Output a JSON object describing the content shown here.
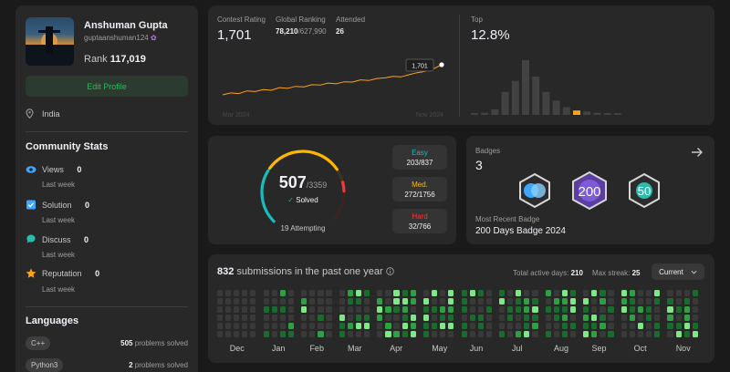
{
  "profile": {
    "name": "Anshuman Gupta",
    "handle": "guptaanshuman124",
    "rank_label": "Rank",
    "rank_value": "117,019",
    "edit_label": "Edit Profile",
    "location": "India"
  },
  "community": {
    "title": "Community Stats",
    "items": [
      {
        "label": "Views",
        "value": "0",
        "sub": "Last week",
        "color": "#3ea6ff",
        "icon": "eye-icon"
      },
      {
        "label": "Solution",
        "value": "0",
        "sub": "Last week",
        "color": "#3ea6ff",
        "icon": "checkbox-icon"
      },
      {
        "label": "Discuss",
        "value": "0",
        "sub": "Last week",
        "color": "#2cbbaa",
        "icon": "chat-icon"
      },
      {
        "label": "Reputation",
        "value": "0",
        "sub": "Last week",
        "color": "#ffa116",
        "icon": "star-icon"
      }
    ]
  },
  "languages": {
    "title": "Languages",
    "items": [
      {
        "name": "C++",
        "count": "505",
        "suffix": "problems solved"
      },
      {
        "name": "Python3",
        "count": "2",
        "suffix": "problems solved"
      }
    ]
  },
  "contest": {
    "rating_label": "Contest Rating",
    "rating": "1,701",
    "global_label": "Global Ranking",
    "global_rank": "78,210",
    "global_total": "/627,990",
    "attended_label": "Attended",
    "attended": "26",
    "tooltip": "1,701",
    "x_start": "Mar 2024",
    "x_end": "Nov 2024",
    "top_label": "Top",
    "top_value": "12.8%",
    "line_color": "#ffa116"
  },
  "chart_data": [
    {
      "type": "line",
      "title": "",
      "series": [
        {
          "values": [
            1470,
            1485,
            1480,
            1500,
            1495,
            1510,
            1505,
            1525,
            1520,
            1535,
            1530,
            1548,
            1545,
            1560,
            1555,
            1570,
            1568,
            1585,
            1580,
            1595,
            1600,
            1612,
            1608,
            1625,
            1640,
            1650,
            1670,
            1701
          ]
        }
      ],
      "ylim": [
        1400,
        1750
      ],
      "xlabel": "",
      "ylabel": ""
    },
    {
      "type": "bar",
      "title": "",
      "values": [
        2,
        4,
        10,
        42,
        62,
        100,
        70,
        42,
        26,
        14,
        8,
        6,
        4,
        3,
        2
      ],
      "highlight_index": 10,
      "ylim": [
        0,
        100
      ],
      "xlabel": "",
      "ylabel": ""
    }
  ],
  "solved": {
    "count": "507",
    "total": "/3359",
    "solved_label": "Solved",
    "attempting": "19 Attempting",
    "easy": {
      "label": "Easy",
      "value": "203/837",
      "color": "#1cbaba"
    },
    "medium": {
      "label": "Med.",
      "value": "272/1756",
      "color": "#ffb700"
    },
    "hard": {
      "label": "Hard",
      "value": "32/766",
      "color": "#f63737"
    },
    "arc": {
      "easy": 0.3,
      "medium": 0.42,
      "hard": 0.05
    }
  },
  "badges": {
    "title": "Badges",
    "count": "3",
    "recent_label": "Most Recent Badge",
    "recent_name": "200 Days Badge 2024",
    "items": [
      {
        "text": ""
      },
      {
        "text": "200"
      },
      {
        "text": "50"
      }
    ]
  },
  "submissions": {
    "count": "832",
    "label": "submissions in the past one year",
    "active_label": "Total active days:",
    "active_value": "210",
    "streak_label": "Max streak:",
    "streak_value": "25",
    "current_label": "Current",
    "months": [
      "Dec",
      "Jan",
      "Feb",
      "Mar",
      "Apr",
      "May",
      "Jun",
      "Jul",
      "Aug",
      "Sep",
      "Oct",
      "Nov"
    ]
  }
}
